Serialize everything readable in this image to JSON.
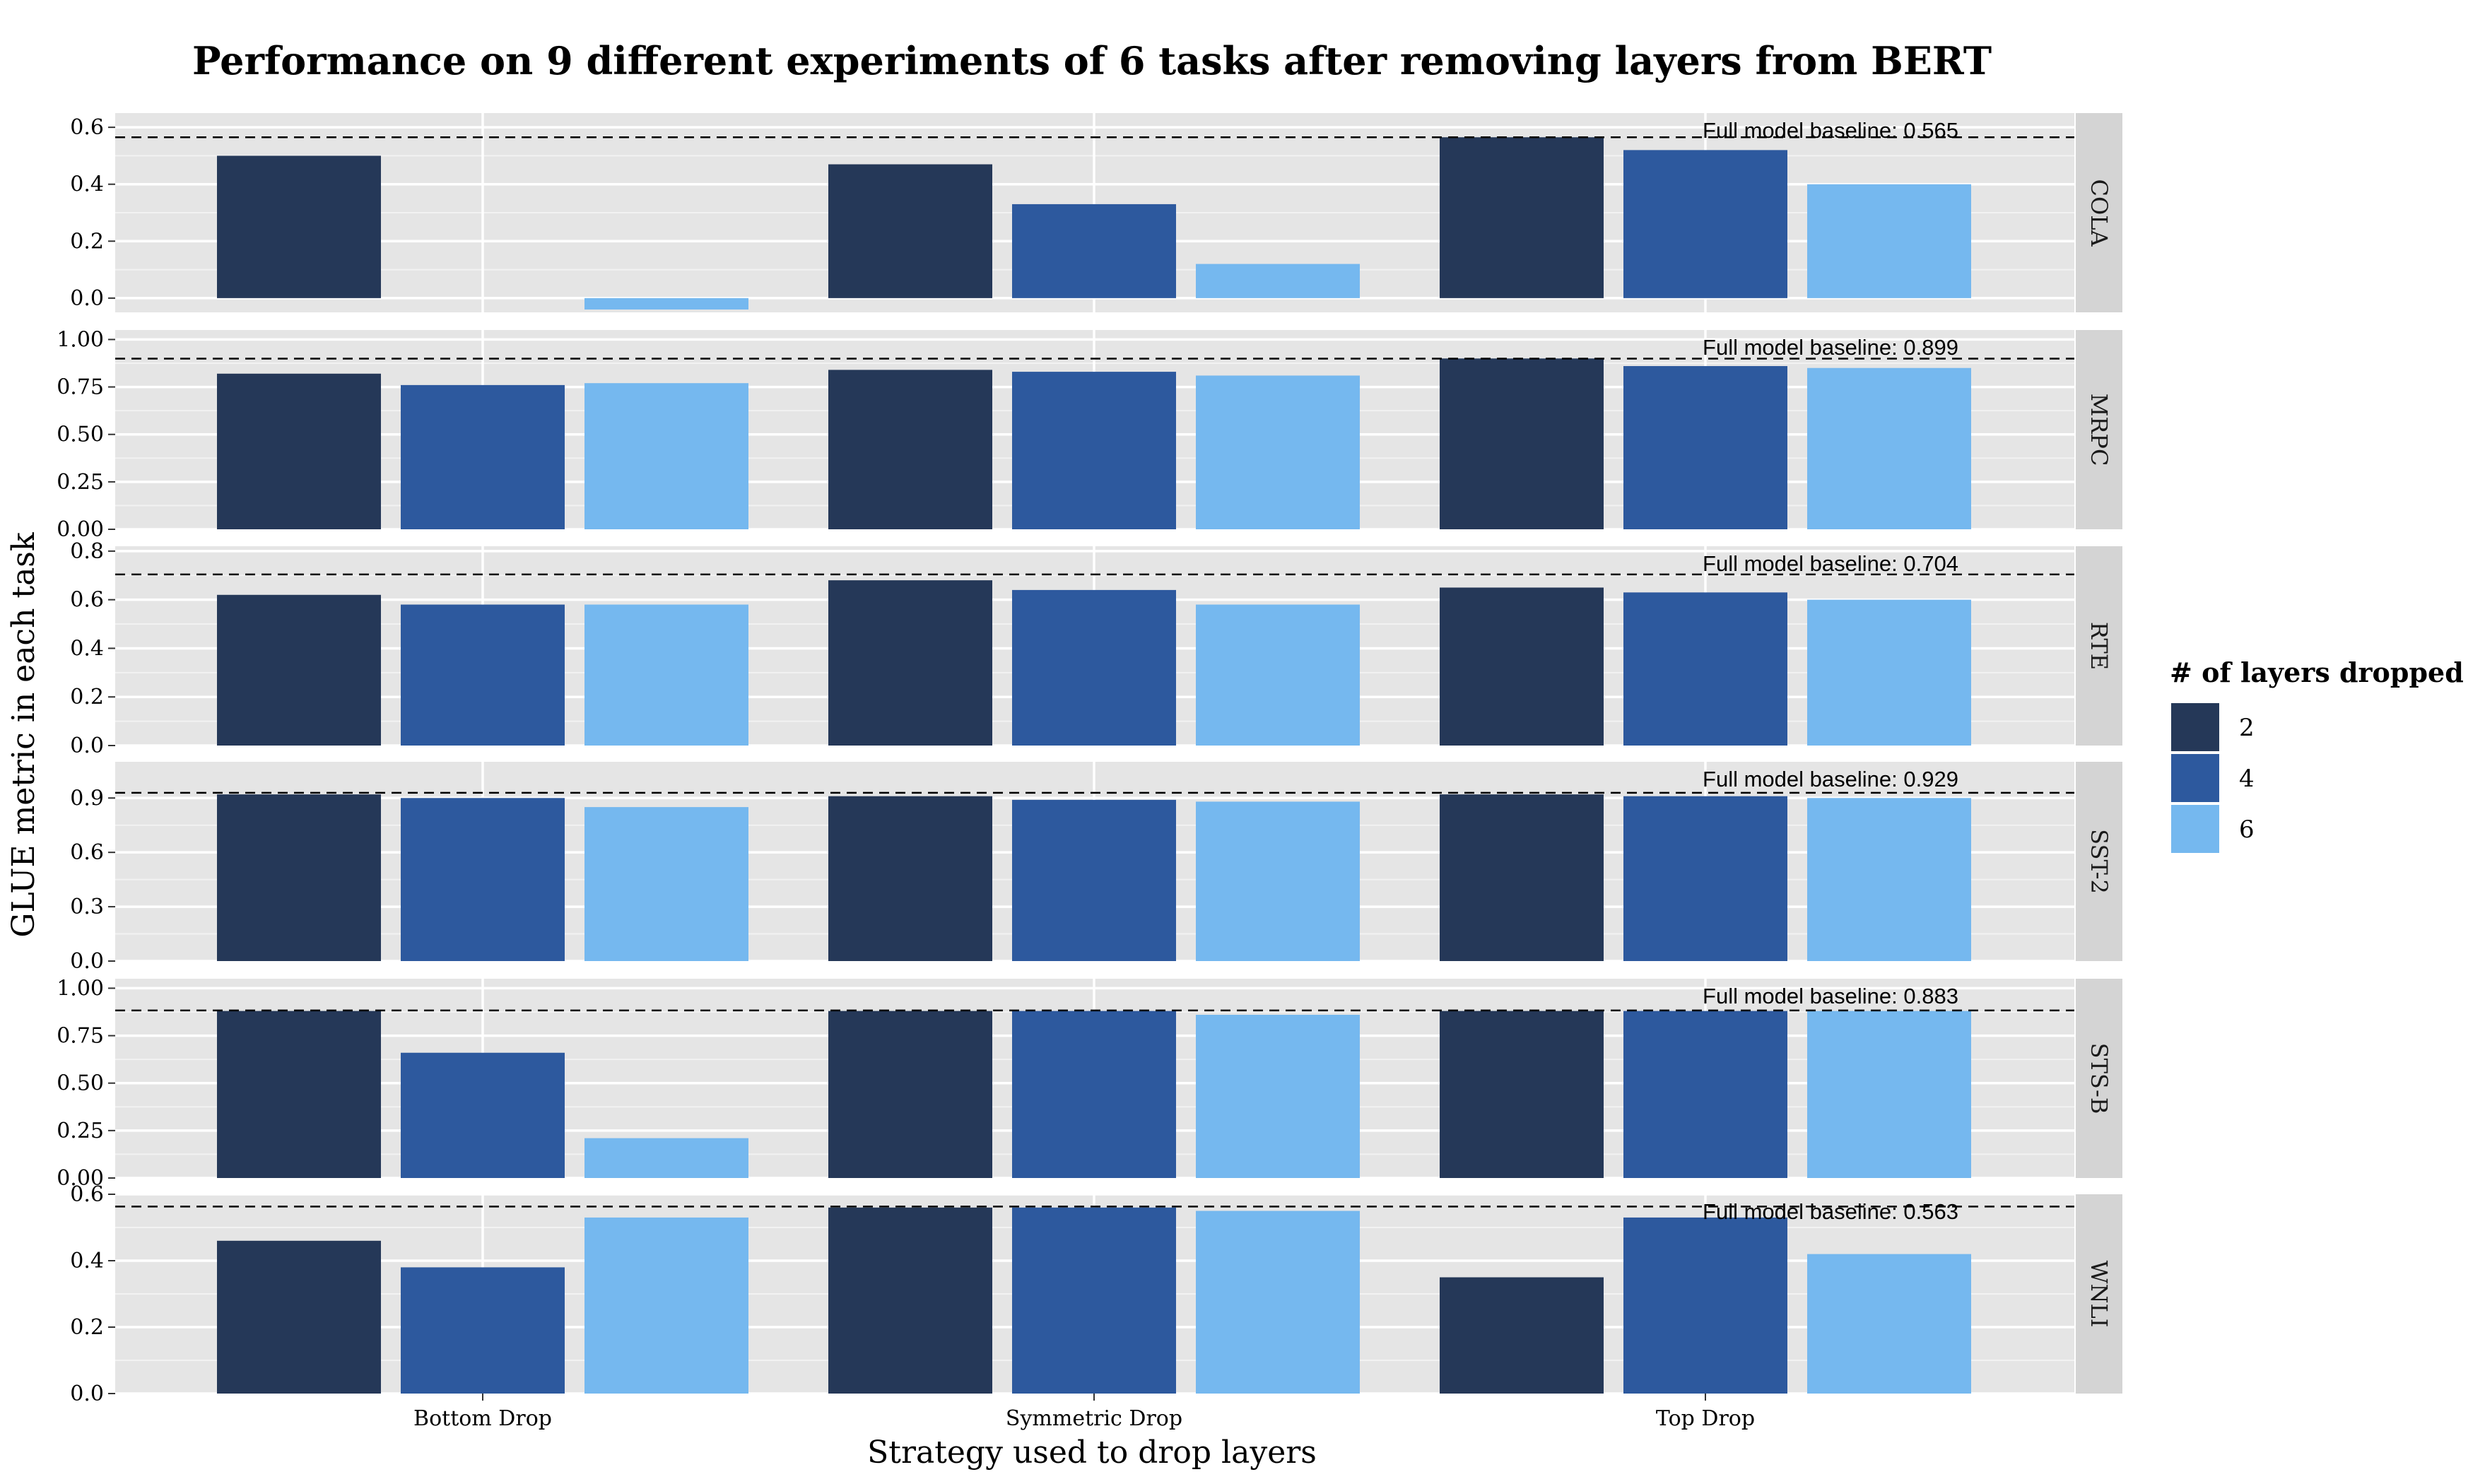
{
  "chart_data": {
    "type": "bar",
    "title": "Performance on 9 different experiments of 6 tasks after removing layers from BERT",
    "xlabel": "Strategy used to drop layers",
    "ylabel": "GLUE metric in each task",
    "categories": [
      "Bottom Drop",
      "Symmetric Drop",
      "Top Drop"
    ],
    "legend": {
      "title": "# of layers dropped",
      "placement": "right",
      "entries": [
        {
          "label": "2",
          "color": "#253858"
        },
        {
          "label": "4",
          "color": "#2d599e"
        },
        {
          "label": "6",
          "color": "#75b8ef"
        }
      ]
    },
    "grid": true,
    "facets": [
      {
        "task": "COLA",
        "ylim": [
          -0.05,
          0.65
        ],
        "yticks": [
          0.0,
          0.2,
          0.4,
          0.6
        ],
        "ytick_labels": [
          "0.0",
          "0.2",
          "0.4",
          "0.6"
        ],
        "baseline": 0.565,
        "baseline_label": "Full model baseline: 0.565",
        "series": [
          {
            "name": "2",
            "values": [
              0.5,
              0.47,
              0.565
            ]
          },
          {
            "name": "4",
            "values": [
              0.0,
              0.33,
              0.52
            ]
          },
          {
            "name": "6",
            "values": [
              -0.04,
              0.12,
              0.4
            ]
          }
        ]
      },
      {
        "task": "MRPC",
        "ylim": [
          0.0,
          1.05
        ],
        "yticks": [
          0.0,
          0.25,
          0.5,
          0.75,
          1.0
        ],
        "ytick_labels": [
          "0.00",
          "0.25",
          "0.50",
          "0.75",
          "1.00"
        ],
        "baseline": 0.899,
        "baseline_label": "Full model baseline: 0.899",
        "series": [
          {
            "name": "2",
            "values": [
              0.82,
              0.84,
              0.9
            ]
          },
          {
            "name": "4",
            "values": [
              0.76,
              0.83,
              0.86
            ]
          },
          {
            "name": "6",
            "values": [
              0.77,
              0.81,
              0.85
            ]
          }
        ]
      },
      {
        "task": "RTE",
        "ylim": [
          0.0,
          0.82
        ],
        "yticks": [
          0.0,
          0.2,
          0.4,
          0.6,
          0.8
        ],
        "ytick_labels": [
          "0.0",
          "0.2",
          "0.4",
          "0.6",
          "0.8"
        ],
        "baseline": 0.704,
        "baseline_label": "Full model baseline: 0.704",
        "series": [
          {
            "name": "2",
            "values": [
              0.62,
              0.68,
              0.65
            ]
          },
          {
            "name": "4",
            "values": [
              0.58,
              0.64,
              0.63
            ]
          },
          {
            "name": "6",
            "values": [
              0.58,
              0.58,
              0.6
            ]
          }
        ]
      },
      {
        "task": "SST-2",
        "ylim": [
          0.0,
          1.1
        ],
        "yticks": [
          0.0,
          0.3,
          0.6,
          0.9
        ],
        "ytick_labels": [
          "0.0",
          "0.3",
          "0.6",
          "0.9"
        ],
        "baseline": 0.929,
        "baseline_label": "Full model baseline: 0.929",
        "series": [
          {
            "name": "2",
            "values": [
              0.92,
              0.91,
              0.92
            ]
          },
          {
            "name": "4",
            "values": [
              0.9,
              0.89,
              0.91
            ]
          },
          {
            "name": "6",
            "values": [
              0.85,
              0.88,
              0.9
            ]
          }
        ]
      },
      {
        "task": "STS-B",
        "ylim": [
          0.0,
          1.05
        ],
        "yticks": [
          0.0,
          0.25,
          0.5,
          0.75,
          1.0
        ],
        "ytick_labels": [
          "0.00",
          "0.25",
          "0.50",
          "0.75",
          "1.00"
        ],
        "baseline": 0.883,
        "baseline_label": "Full model baseline: 0.883",
        "series": [
          {
            "name": "2",
            "values": [
              0.88,
              0.88,
              0.88
            ]
          },
          {
            "name": "4",
            "values": [
              0.66,
              0.88,
              0.88
            ]
          },
          {
            "name": "6",
            "values": [
              0.21,
              0.86,
              0.88
            ]
          }
        ]
      },
      {
        "task": "WNLI",
        "ylim": [
          0.0,
          0.6
        ],
        "yticks": [
          0.0,
          0.2,
          0.4,
          0.6
        ],
        "ytick_labels": [
          "0.0",
          "0.2",
          "0.4",
          "0.6"
        ],
        "baseline": 0.563,
        "baseline_label": "Full model baseline: 0.563",
        "series": [
          {
            "name": "2",
            "values": [
              0.46,
              0.56,
              0.35
            ]
          },
          {
            "name": "4",
            "values": [
              0.38,
              0.56,
              0.53
            ]
          },
          {
            "name": "6",
            "values": [
              0.53,
              0.55,
              0.42
            ]
          }
        ]
      }
    ]
  }
}
